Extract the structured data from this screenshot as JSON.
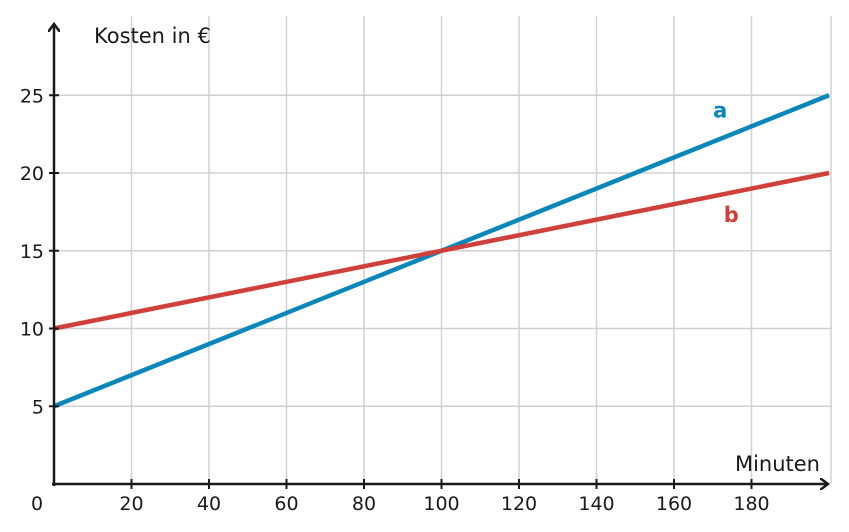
{
  "chart_data": {
    "type": "line",
    "xlabel": "Minuten",
    "ylabel": "Kosten in €",
    "xlim": [
      0,
      200
    ],
    "ylim": [
      0,
      30
    ],
    "x_ticks": [
      20,
      40,
      60,
      80,
      100,
      120,
      140,
      160,
      180
    ],
    "y_ticks": [
      5,
      10,
      15,
      20,
      25
    ],
    "origin_label": "0",
    "grid": true,
    "series": [
      {
        "name": "a",
        "color": "#0a87ba",
        "x": [
          0,
          200
        ],
        "y": [
          5,
          25
        ]
      },
      {
        "name": "b",
        "color": "#d0403a",
        "x": [
          0,
          200
        ],
        "y": [
          10,
          20
        ]
      }
    ]
  }
}
